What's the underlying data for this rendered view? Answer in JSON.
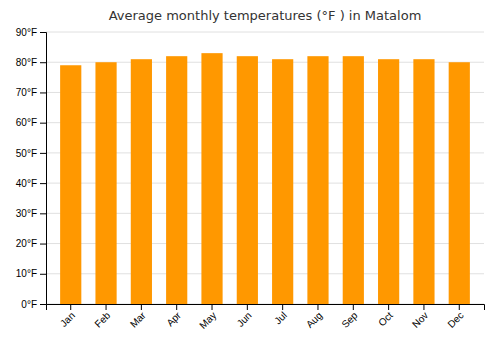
{
  "chart_data": {
    "type": "bar",
    "title": "Average monthly temperatures (°F ) in Matalom",
    "categories": [
      "Jan",
      "Feb",
      "Mar",
      "Apr",
      "May",
      "Jun",
      "Jul",
      "Aug",
      "Sep",
      "Oct",
      "Nov",
      "Dec"
    ],
    "values": [
      79,
      80,
      81,
      82,
      83,
      82,
      81,
      82,
      82,
      81,
      81,
      80
    ],
    "color": "#FF9800",
    "ylim": [
      0,
      90
    ],
    "yticks": [
      {
        "value": 0,
        "label": "0°F"
      },
      {
        "value": 10,
        "label": "10°F"
      },
      {
        "value": 20,
        "label": "20°F"
      },
      {
        "value": 30,
        "label": "30°F"
      },
      {
        "value": 40,
        "label": "40°F"
      },
      {
        "value": 50,
        "label": "50°F"
      },
      {
        "value": 60,
        "label": "60°F"
      },
      {
        "value": 70,
        "label": "70°F"
      },
      {
        "value": 80,
        "label": "80°F"
      },
      {
        "value": 90,
        "label": "90°F"
      }
    ],
    "grid": true
  }
}
